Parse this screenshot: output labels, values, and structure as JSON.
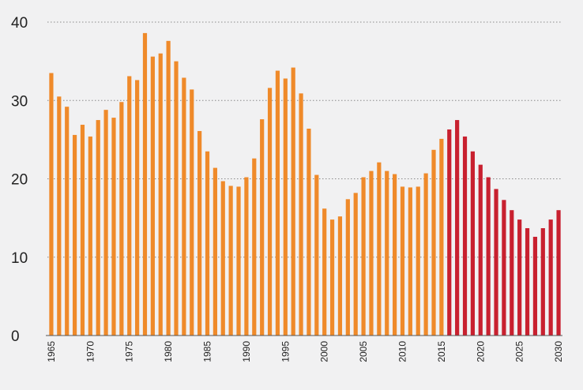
{
  "chart_data": {
    "type": "bar",
    "title": "",
    "xlabel": "",
    "ylabel": "",
    "ylim": [
      0,
      40
    ],
    "yticks": [
      0,
      10,
      20,
      30,
      40
    ],
    "xticks": [
      1965,
      1970,
      1975,
      1980,
      1985,
      1990,
      1995,
      2000,
      2005,
      2010,
      2015,
      2020,
      2025,
      2030
    ],
    "grid": true,
    "legend": "none",
    "colors": {
      "historical": "#ef8a2a",
      "projected": "#c8202f"
    },
    "projection_start": 2016,
    "categories": [
      1965,
      1966,
      1967,
      1968,
      1969,
      1970,
      1971,
      1972,
      1973,
      1974,
      1975,
      1976,
      1977,
      1978,
      1979,
      1980,
      1981,
      1982,
      1983,
      1984,
      1985,
      1986,
      1987,
      1988,
      1989,
      1990,
      1991,
      1992,
      1993,
      1994,
      1995,
      1996,
      1997,
      1998,
      1999,
      2000,
      2001,
      2002,
      2003,
      2004,
      2005,
      2006,
      2007,
      2008,
      2009,
      2010,
      2011,
      2012,
      2013,
      2014,
      2015,
      2016,
      2017,
      2018,
      2019,
      2020,
      2021,
      2022,
      2023,
      2024,
      2025,
      2026,
      2027,
      2028,
      2029,
      2030
    ],
    "values": [
      33.5,
      30.5,
      29.2,
      25.6,
      26.9,
      25.4,
      27.5,
      28.8,
      27.8,
      29.8,
      33.1,
      32.6,
      38.6,
      35.6,
      36.0,
      37.6,
      35.0,
      32.9,
      31.4,
      26.1,
      23.5,
      21.4,
      19.7,
      19.1,
      19.0,
      20.2,
      22.6,
      27.6,
      31.6,
      33.8,
      32.8,
      34.2,
      30.9,
      26.4,
      20.5,
      16.2,
      14.8,
      15.2,
      17.4,
      18.2,
      20.2,
      21.0,
      22.1,
      21.0,
      20.6,
      19.0,
      18.9,
      19.0,
      20.7,
      23.7,
      25.1,
      26.3,
      27.5,
      25.4,
      23.5,
      21.8,
      20.2,
      18.7,
      17.3,
      16.0,
      14.8,
      13.7,
      12.6,
      13.7,
      14.8,
      16.0
    ]
  }
}
